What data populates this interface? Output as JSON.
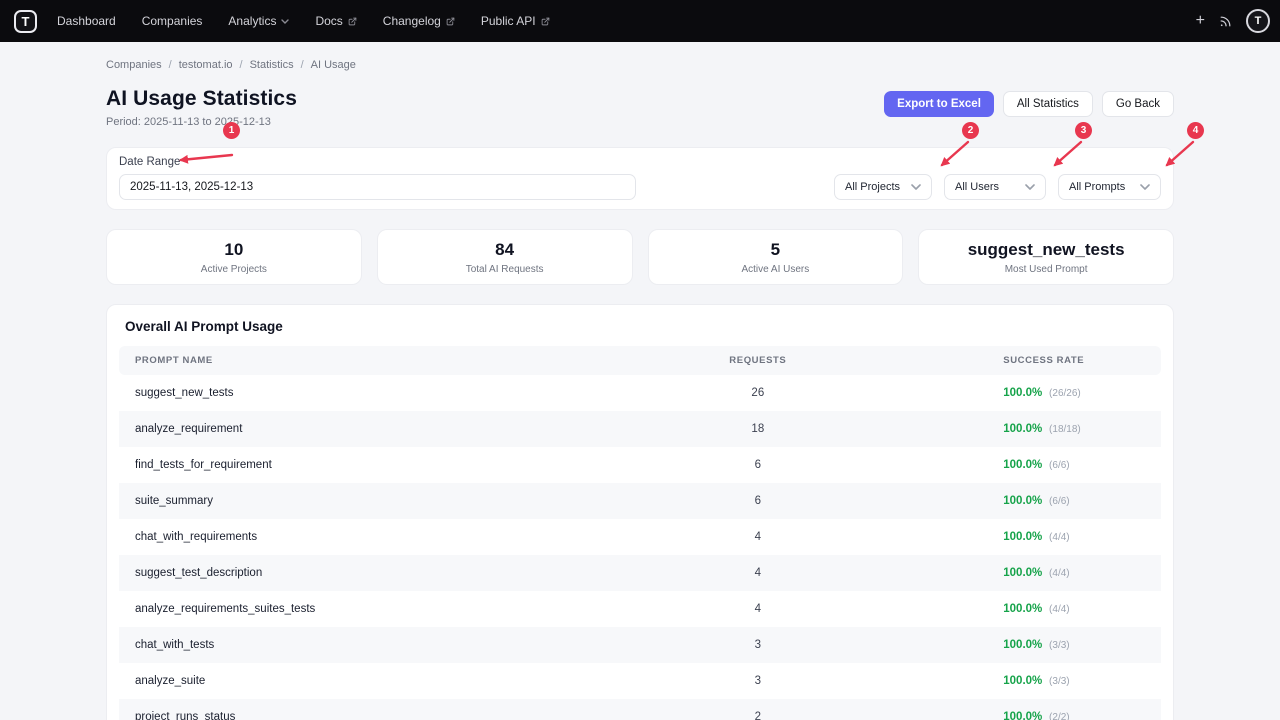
{
  "colors": {
    "accent": "#6366f1",
    "success": "#16a34a",
    "annotation": "#e8374f"
  },
  "navbar": {
    "logo": "T",
    "items": [
      {
        "label": "Dashboard",
        "has_dropdown": false,
        "external": false
      },
      {
        "label": "Companies",
        "has_dropdown": false,
        "external": false
      },
      {
        "label": "Analytics",
        "has_dropdown": true,
        "external": false
      },
      {
        "label": "Docs",
        "has_dropdown": false,
        "external": true
      },
      {
        "label": "Changelog",
        "has_dropdown": false,
        "external": true
      },
      {
        "label": "Public API",
        "has_dropdown": false,
        "external": true
      }
    ],
    "add_label": "+",
    "avatar": "T"
  },
  "breadcrumb": [
    "Companies",
    "testomat.io",
    "Statistics",
    "AI Usage"
  ],
  "header": {
    "title": "AI Usage Statistics",
    "period": "Period: 2025-11-13 to 2025-12-13",
    "export_button": "Export to Excel",
    "all_statistics_button": "All Statistics",
    "go_back_button": "Go Back"
  },
  "filters": {
    "date_range_label": "Date Range",
    "date_range_value": "2025-11-13, 2025-12-13",
    "dropdowns": [
      "All Projects",
      "All Users",
      "All Prompts"
    ]
  },
  "annotations": [
    "1",
    "2",
    "3",
    "4"
  ],
  "stats": [
    {
      "value": "10",
      "label": "Active Projects"
    },
    {
      "value": "84",
      "label": "Total AI Requests"
    },
    {
      "value": "5",
      "label": "Active AI Users"
    },
    {
      "value": "suggest_new_tests",
      "label": "Most Used Prompt"
    }
  ],
  "table": {
    "title": "Overall AI Prompt Usage",
    "headers": [
      "PROMPT NAME",
      "REQUESTS",
      "SUCCESS RATE"
    ],
    "rows": [
      {
        "name": "suggest_new_tests",
        "requests": "26",
        "rate": "100.0%",
        "detail": "(26/26)"
      },
      {
        "name": "analyze_requirement",
        "requests": "18",
        "rate": "100.0%",
        "detail": "(18/18)"
      },
      {
        "name": "find_tests_for_requirement",
        "requests": "6",
        "rate": "100.0%",
        "detail": "(6/6)"
      },
      {
        "name": "suite_summary",
        "requests": "6",
        "rate": "100.0%",
        "detail": "(6/6)"
      },
      {
        "name": "chat_with_requirements",
        "requests": "4",
        "rate": "100.0%",
        "detail": "(4/4)"
      },
      {
        "name": "suggest_test_description",
        "requests": "4",
        "rate": "100.0%",
        "detail": "(4/4)"
      },
      {
        "name": "analyze_requirements_suites_tests",
        "requests": "4",
        "rate": "100.0%",
        "detail": "(4/4)"
      },
      {
        "name": "chat_with_tests",
        "requests": "3",
        "rate": "100.0%",
        "detail": "(3/3)"
      },
      {
        "name": "analyze_suite",
        "requests": "3",
        "rate": "100.0%",
        "detail": "(3/3)"
      },
      {
        "name": "project_runs_status",
        "requests": "2",
        "rate": "100.0%",
        "detail": "(2/2)"
      }
    ]
  }
}
